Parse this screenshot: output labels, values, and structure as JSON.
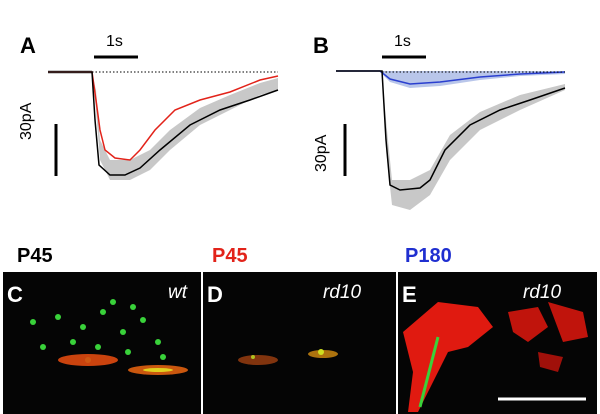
{
  "panels": {
    "a": {
      "letter": "A",
      "time_scale": "1s",
      "amp_scale": "30pA"
    },
    "b": {
      "letter": "B",
      "time_scale": "1s",
      "amp_scale": "30pA"
    },
    "c": {
      "letter": "C",
      "age": "P45",
      "genotype": "wt"
    },
    "d": {
      "letter": "D",
      "age": "P45",
      "genotype": "rd10"
    },
    "e": {
      "letter": "E",
      "age": "P180",
      "genotype": "rd10"
    }
  },
  "colors": {
    "wt_trace": "#000000",
    "rd10_p45_trace": "#e2231a",
    "rd10_p180_trace": "#2a3fcf",
    "error_band": "#c8c8c8",
    "p45_wt_label": "#000000",
    "p45_rd10_label": "#e2231a",
    "p180_label": "#1f2fd0",
    "marker_green": "#39d23a",
    "marker_red": "#e01a10"
  }
}
